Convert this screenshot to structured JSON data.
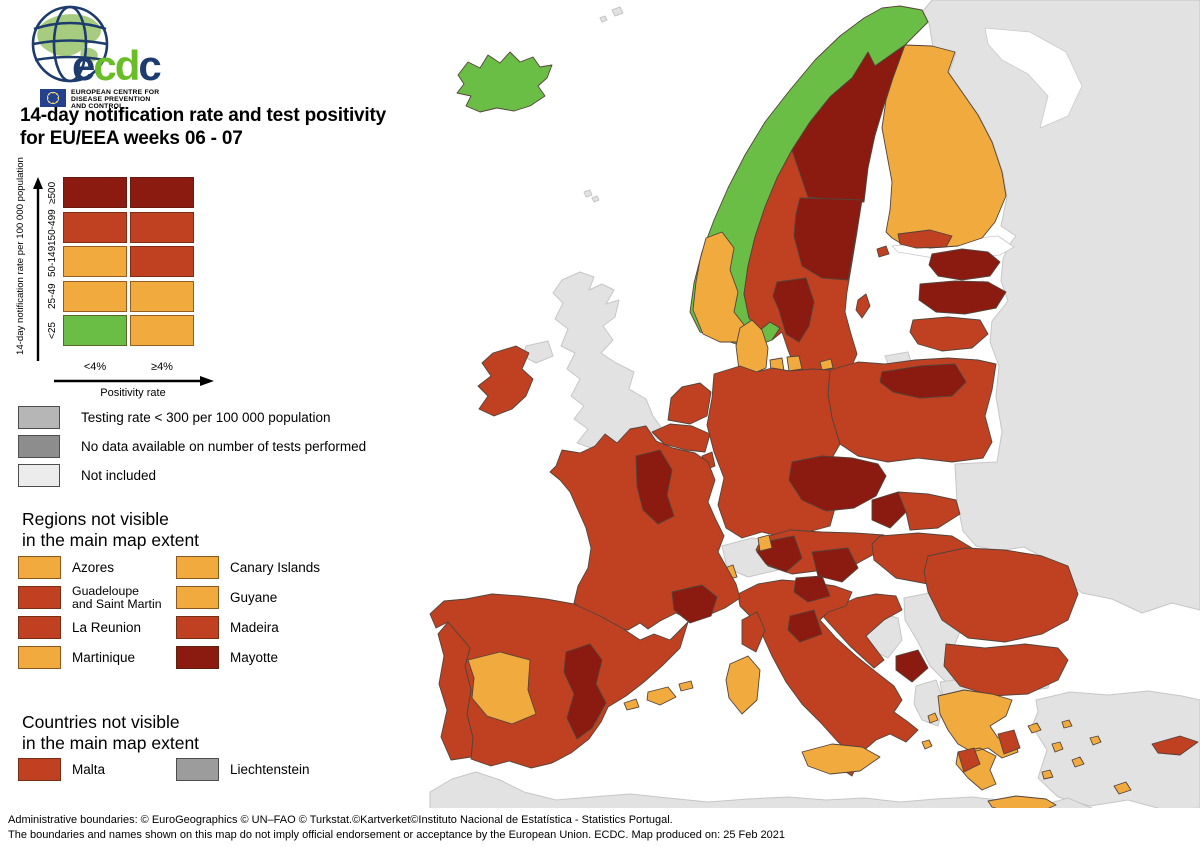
{
  "logo": {
    "wordmark_parts": [
      "e",
      "cd",
      "c"
    ],
    "org_lines": [
      "EUROPEAN CENTRE FOR",
      "DISEASE PREVENTION",
      "AND CONTROL"
    ]
  },
  "title": {
    "line1": "14-day notification rate and test positivity",
    "line2": "for EU/EEA weeks 06 - 07"
  },
  "matrix": {
    "y_axis_label": "14-day notification rate per 100 000 population",
    "x_axis_label": "Positivity rate",
    "columns": [
      "<4%",
      "≥4%"
    ],
    "rows": [
      {
        "label": "≥500",
        "cells": [
          "dark_red",
          "dark_red"
        ]
      },
      {
        "label": "150-499",
        "cells": [
          "brick",
          "brick"
        ]
      },
      {
        "label": "50-149",
        "cells": [
          "orange",
          "brick"
        ]
      },
      {
        "label": "25-49",
        "cells": [
          "orange",
          "orange"
        ]
      },
      {
        "label": "<25",
        "cells": [
          "green",
          "orange"
        ]
      }
    ]
  },
  "legend_gray": [
    {
      "label": "Testing rate < 300 per 100 000 population",
      "color": "gray_testing"
    },
    {
      "label": "No data available on number of tests performed",
      "color": "gray_nodata"
    },
    {
      "label": "Not included",
      "color": "gray_notincluded"
    }
  ],
  "regions_section": {
    "heading_line1": "Regions not visible",
    "heading_line2": "in the main map extent",
    "items": [
      {
        "label": "Azores",
        "color": "orange"
      },
      {
        "label": "Canary Islands",
        "color": "orange"
      },
      {
        "label": "Guadeloupe\nand Saint Martin",
        "color": "brick"
      },
      {
        "label": "Guyane",
        "color": "orange"
      },
      {
        "label": "La Reunion",
        "color": "brick"
      },
      {
        "label": "Madeira",
        "color": "brick"
      },
      {
        "label": "Martinique",
        "color": "orange"
      },
      {
        "label": "Mayotte",
        "color": "dark_red"
      }
    ]
  },
  "countries_section": {
    "heading_line1": "Countries not visible",
    "heading_line2": "in the main map extent",
    "items": [
      {
        "label": "Malta",
        "color": "brick"
      },
      {
        "label": "Liechtenstein",
        "color": "gray_liechtenstein",
        "gray_border": true
      }
    ]
  },
  "footer": {
    "line1": "Administrative boundaries: © EuroGeographics © UN–FAO © Turkstat.©Kartverket©Instituto Nacional de Estatística - Statistics Portugal.",
    "line2": "The boundaries and names shown on this map do not imply official endorsement or acceptance by the European Union. ECDC. Map produced on: 25 Feb 2021"
  },
  "colors": {
    "dark_red": "#8b1a10",
    "brick": "#bf4122",
    "orange": "#f0aa3e",
    "green": "#6abe45",
    "map_gray": "#e2e2e2",
    "sea": "#ffffff",
    "gray_testing": "#b6b6b6",
    "gray_nodata": "#8d8d8d",
    "gray_notincluded": "#ececec",
    "gray_liechtenstein": "#9c9c9c",
    "navy": "#1d3c6d",
    "logo_green": "#69be28",
    "logo_land_green": "#a8cc7f",
    "eu_flag_blue": "#24418e",
    "star_yellow": "#ffd617"
  },
  "map_regions": {
    "east_block": "map_gray",
    "turkey": "map_gray",
    "thrace": "map_gray",
    "north_africa": "map_gray",
    "uk": "map_gray",
    "n_ireland": "map_gray",
    "switzerland": "map_gray",
    "bosnia": "map_gray",
    "serbia": "map_gray",
    "albania": "map_gray",
    "north_macedonia": "map_gray",
    "kaliningrad": "map_gray",
    "faroes": "map_gray",
    "svalbard": "map_gray",
    "white_sea": "sea",
    "gulf_finland": "sea",
    "gulf_riga": "sea",
    "iceland": "green",
    "norway_main": "green",
    "norway_sw_orange": "orange",
    "norway_oslo_spot": "orange",
    "sweden_base": "brick",
    "sweden_dark_north": "dark_red",
    "sweden_dark_central": "dark_red",
    "sweden_dark_sw": "dark_red",
    "gotland": "brick",
    "aland": "brick",
    "finland": "orange",
    "finland_south": "brick",
    "estonia": "dark_red",
    "latvia": "dark_red",
    "lithuania": "brick",
    "denmark_jutland": "orange",
    "denmark_funen": "orange",
    "denmark_zealand": "orange",
    "bornholm": "orange",
    "poland": "brick",
    "poland_ne": "dark_red",
    "germany": "brick",
    "netherlands": "brick",
    "belgium": "brick",
    "luxembourg": "brick",
    "czechia": "dark_red",
    "slovakia_west": "dark_red",
    "slovakia_east": "brick",
    "austria": "brick",
    "tyrol": "dark_red",
    "hungary": "brick",
    "slovenia": "dark_red",
    "croatia": "brick",
    "montenegro": "dark_red",
    "romania": "brick",
    "bulgaria": "brick",
    "greece": "orange",
    "attica": "brick",
    "peloponnese_west": "brick",
    "crete": "orange",
    "aegean_islands": "orange",
    "ionian_islands": "orange",
    "cyprus": "brick",
    "italy": "brick",
    "italy_north_patch": "dark_red",
    "italy_central_patch": "dark_red",
    "sardinia": "orange",
    "sicily": "orange",
    "corsica": "brick",
    "aosta_spot": "orange",
    "alps_spot": "orange",
    "france": "brick",
    "france_ne": "dark_red",
    "provence": "dark_red",
    "spain": "brick",
    "extremadura": "orange",
    "valencia": "dark_red",
    "balearics": "orange",
    "portugal": "brick",
    "ireland": "brick"
  }
}
